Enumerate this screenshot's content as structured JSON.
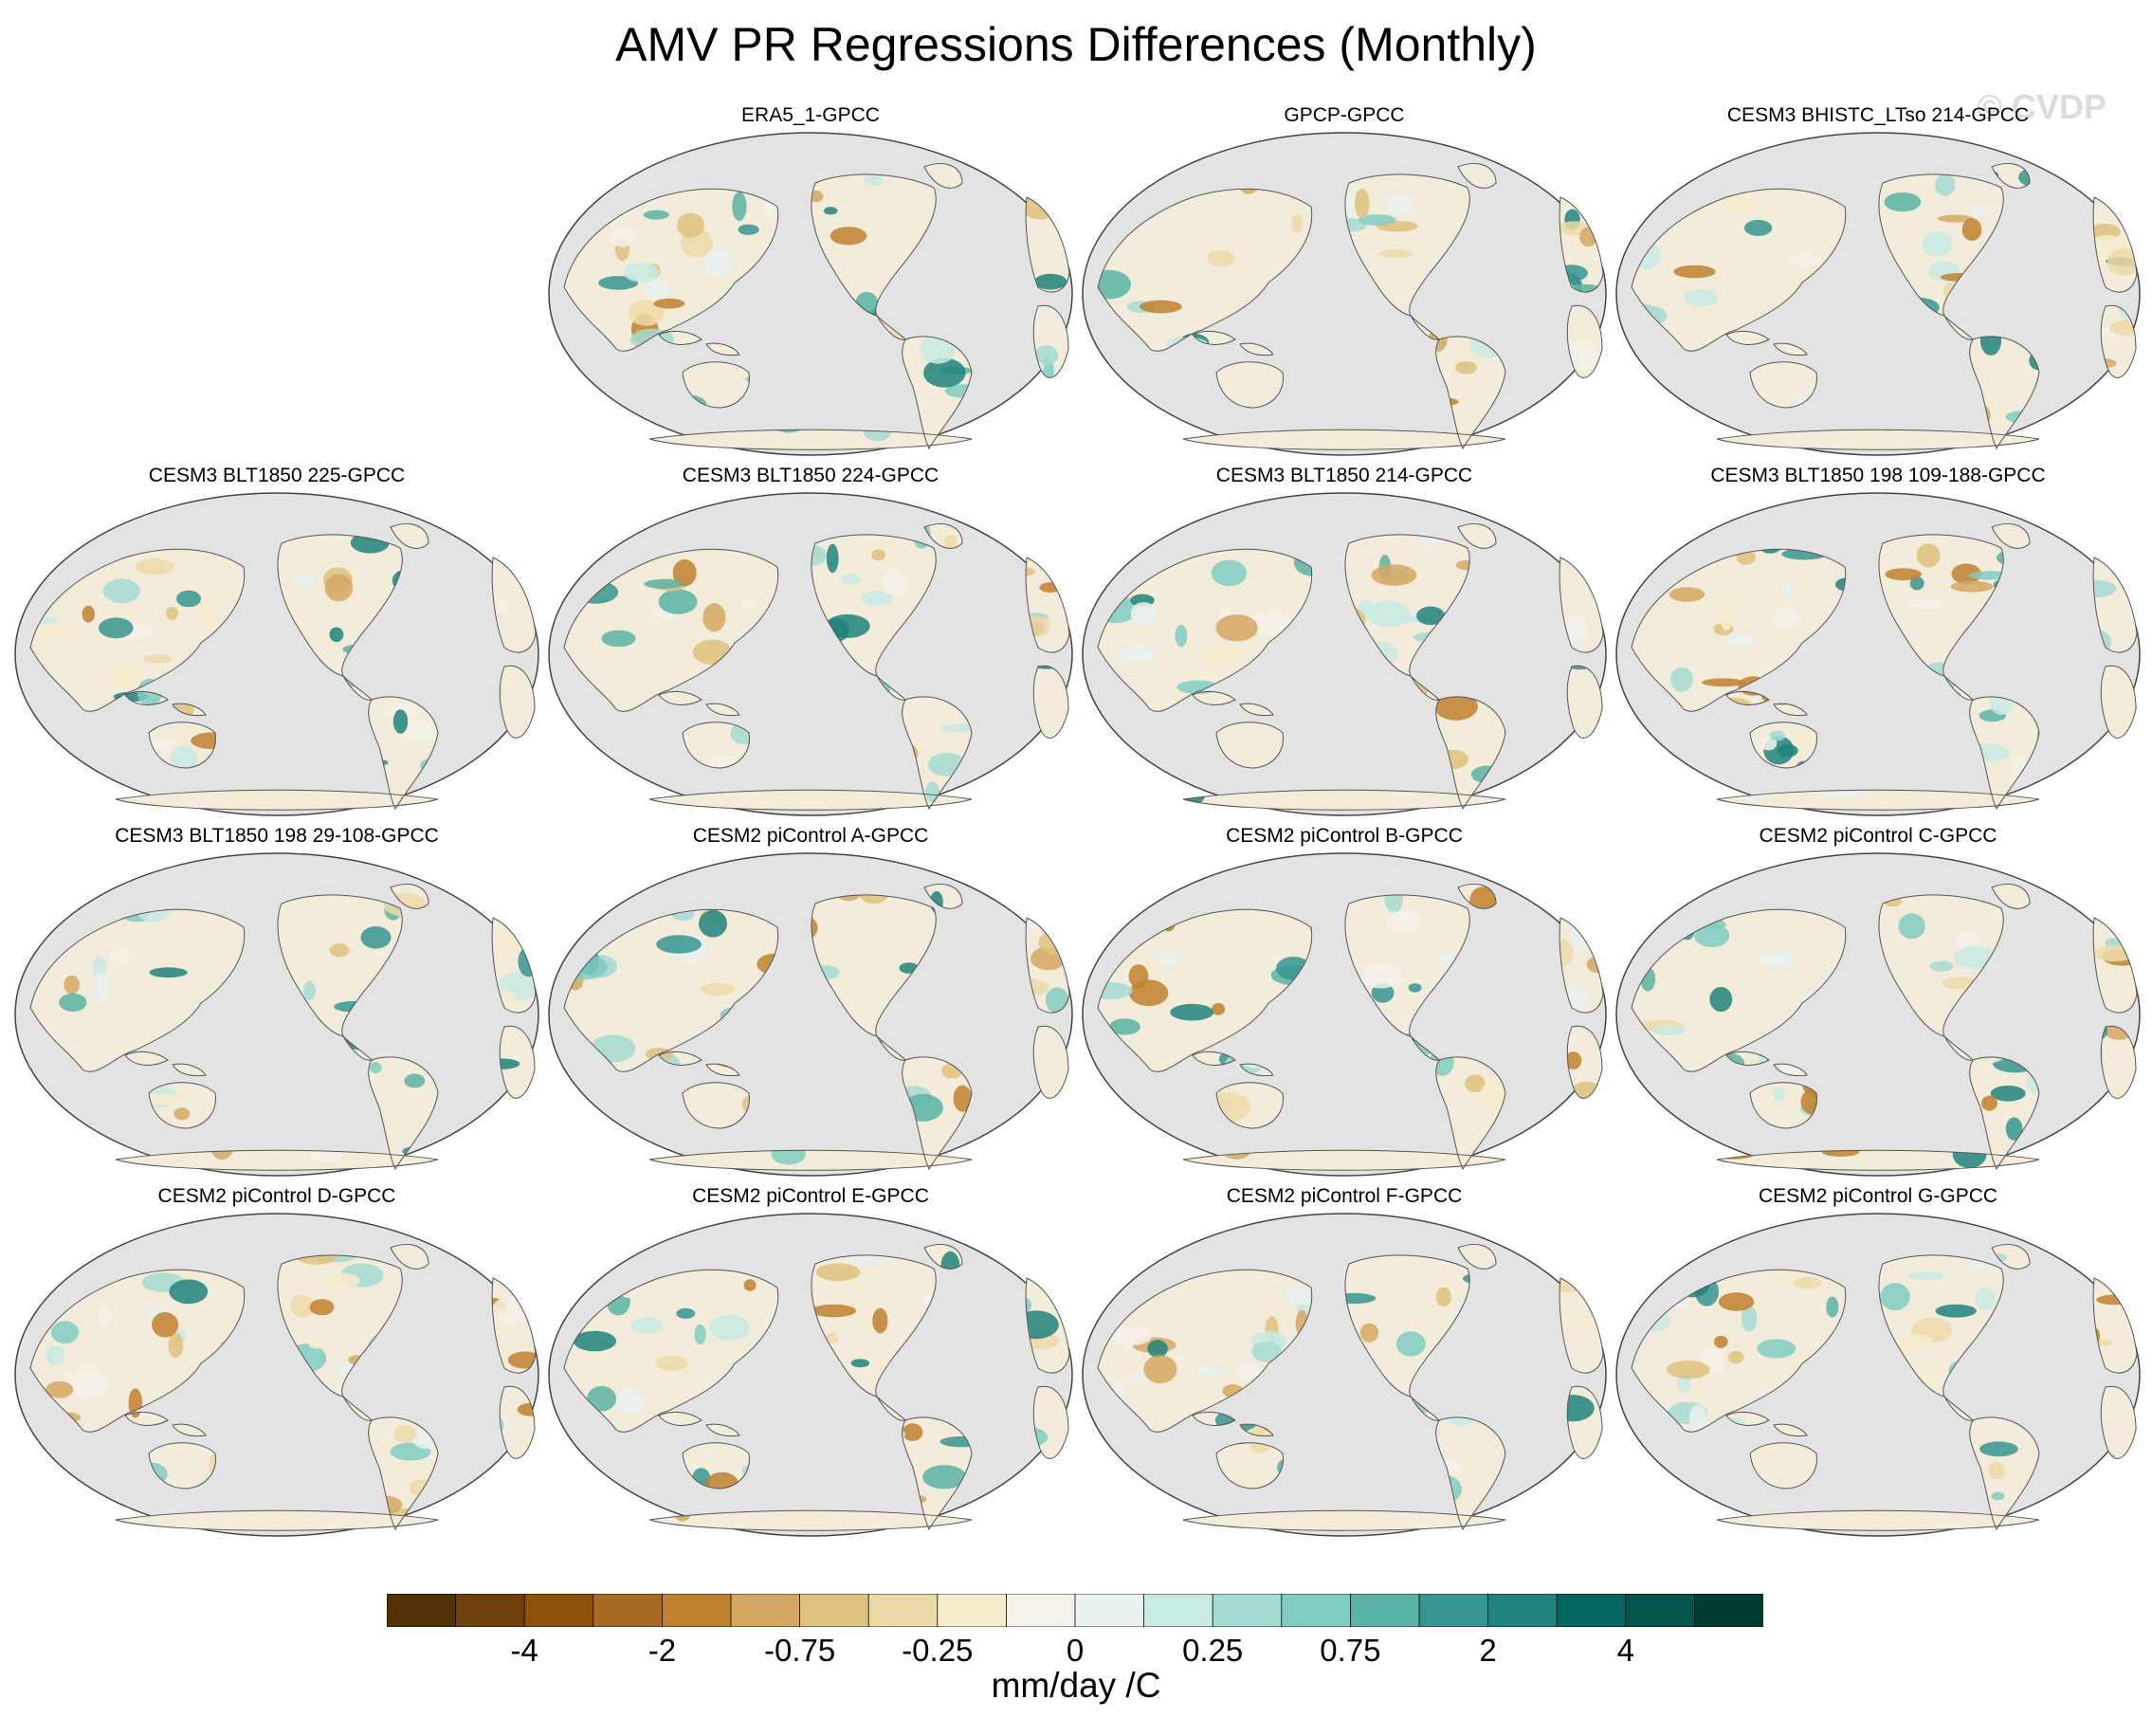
{
  "title": "AMV PR Regressions Differences (Monthly)",
  "watermark": "© CVDP",
  "panels": [
    "ERA5_1-GPCC",
    "GPCP-GPCC",
    "CESM3 BHISTC_LTso 214-GPCC",
    "CESM3 BLT1850 225-GPCC",
    "CESM3 BLT1850 224-GPCC",
    "CESM3 BLT1850 214-GPCC",
    "CESM3 BLT1850 198 109-188-GPCC",
    "CESM3 BLT1850 198 29-108-GPCC",
    "CESM2 piControl A-GPCC",
    "CESM2 piControl B-GPCC",
    "CESM2 piControl C-GPCC",
    "CESM2 piControl D-GPCC",
    "CESM2 piControl E-GPCC",
    "CESM2 piControl F-GPCC",
    "CESM2 piControl G-GPCC"
  ],
  "colorbar": {
    "colors": [
      "#543005",
      "#6e3f0a",
      "#8c510a",
      "#a86a22",
      "#bf812d",
      "#d4a862",
      "#dfc27d",
      "#eddaa9",
      "#f6ecce",
      "#f5f2ea",
      "#e8f2f0",
      "#c7eae4",
      "#a4dcd2",
      "#80cdc1",
      "#5ab4a6",
      "#35978f",
      "#1f847b",
      "#01665e",
      "#02554d",
      "#003c30"
    ],
    "tick_labels": [
      "-4",
      "-2",
      "-0.75",
      "-0.25",
      "0",
      "0.25",
      "0.75",
      "2",
      "4"
    ],
    "units": "mm/day /C"
  },
  "map_style": {
    "ocean": "#e3e3e3",
    "land": "#f4ecda",
    "coast": "#555555"
  }
}
